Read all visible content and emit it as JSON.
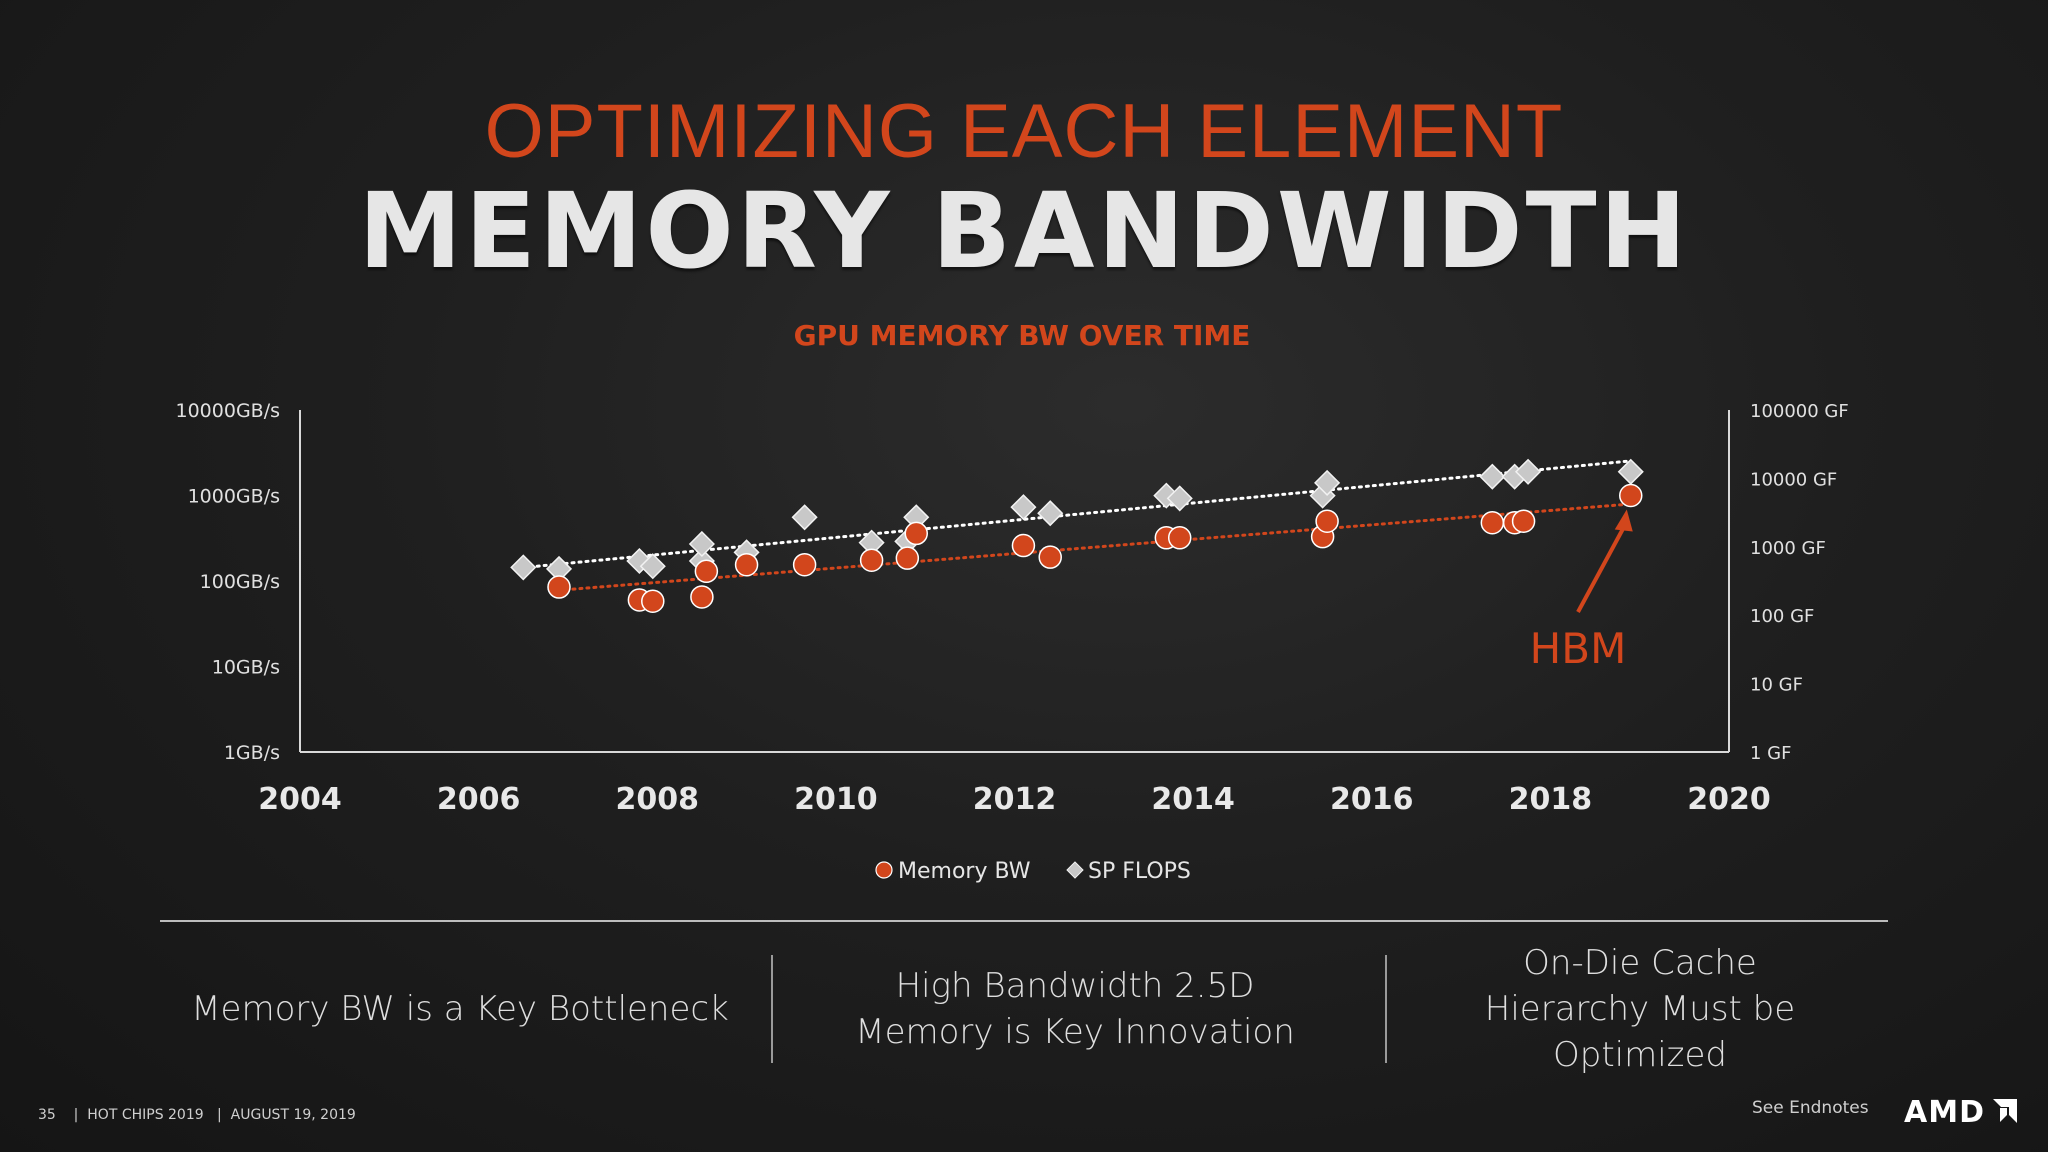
{
  "header": {
    "kicker": "OPTIMIZING EACH ELEMENT",
    "title": "MEMORY BANDWIDTH"
  },
  "chart_data": {
    "type": "scatter",
    "title": "GPU MEMORY BW OVER TIME",
    "xlabel": "",
    "ylabel_left": "",
    "ylabel_right": "",
    "x_ticks": [
      "2004",
      "2006",
      "2008",
      "2010",
      "2012",
      "2014",
      "2016",
      "2018",
      "2020"
    ],
    "xlim": [
      2004,
      2020
    ],
    "left_ticks": [
      "10000GB/s",
      "1000GB/s",
      "100GB/s",
      "10GB/s",
      "1GB/s"
    ],
    "right_ticks": [
      "100000 GF",
      "10000 GF",
      "1000 GF",
      "100 GF",
      "10 GF",
      "1 GF"
    ],
    "left_ylim_gbs": [
      1,
      10000
    ],
    "right_ylim_gf": [
      1,
      100000
    ],
    "legend_position": "bottom-center",
    "series": [
      {
        "name": "Memory BW",
        "axis": "left",
        "unit": "GB/s",
        "marker": "circle",
        "color": "#d2461c",
        "trendline": "dotted",
        "points": [
          {
            "x": 2006.9,
            "y": 85
          },
          {
            "x": 2007.8,
            "y": 60
          },
          {
            "x": 2007.95,
            "y": 58
          },
          {
            "x": 2008.5,
            "y": 65
          },
          {
            "x": 2008.55,
            "y": 130
          },
          {
            "x": 2009.0,
            "y": 155
          },
          {
            "x": 2009.65,
            "y": 155
          },
          {
            "x": 2010.4,
            "y": 175
          },
          {
            "x": 2010.8,
            "y": 185
          },
          {
            "x": 2010.9,
            "y": 360
          },
          {
            "x": 2012.1,
            "y": 260
          },
          {
            "x": 2012.4,
            "y": 190
          },
          {
            "x": 2013.7,
            "y": 320
          },
          {
            "x": 2013.85,
            "y": 320
          },
          {
            "x": 2015.45,
            "y": 330
          },
          {
            "x": 2015.5,
            "y": 500
          },
          {
            "x": 2017.35,
            "y": 480
          },
          {
            "x": 2017.6,
            "y": 480
          },
          {
            "x": 2017.7,
            "y": 500
          },
          {
            "x": 2018.9,
            "y": 1000
          }
        ]
      },
      {
        "name": "SP FLOPS",
        "axis": "right",
        "unit": "GF",
        "marker": "diamond",
        "color": "#c8c8c8",
        "trendline": "dotted",
        "points": [
          {
            "x": 2006.5,
            "y": 500
          },
          {
            "x": 2006.9,
            "y": 475
          },
          {
            "x": 2007.8,
            "y": 620
          },
          {
            "x": 2007.95,
            "y": 520
          },
          {
            "x": 2008.5,
            "y": 620
          },
          {
            "x": 2008.5,
            "y": 1100
          },
          {
            "x": 2009.0,
            "y": 830
          },
          {
            "x": 2009.65,
            "y": 2700
          },
          {
            "x": 2010.4,
            "y": 1150
          },
          {
            "x": 2010.8,
            "y": 1200
          },
          {
            "x": 2010.9,
            "y": 2700
          },
          {
            "x": 2012.1,
            "y": 3800
          },
          {
            "x": 2012.4,
            "y": 3100
          },
          {
            "x": 2013.7,
            "y": 5600
          },
          {
            "x": 2013.85,
            "y": 5100
          },
          {
            "x": 2015.45,
            "y": 5600
          },
          {
            "x": 2015.5,
            "y": 8600
          },
          {
            "x": 2017.35,
            "y": 10600
          },
          {
            "x": 2017.6,
            "y": 10600
          },
          {
            "x": 2017.75,
            "y": 12500
          },
          {
            "x": 2018.9,
            "y": 12500
          }
        ]
      }
    ],
    "annotations": [
      {
        "text": "HBM",
        "color": "#d2461c",
        "points_to": {
          "x": 2018.9,
          "y": 1000,
          "series": "Memory BW"
        }
      }
    ]
  },
  "bottom_points": [
    {
      "text": "Memory BW is a Key Bottleneck"
    },
    {
      "text": "High Bandwidth 2.5D Memory is Key Innovation"
    },
    {
      "text": "On-Die Cache Hierarchy Must be Optimized"
    }
  ],
  "footer": {
    "page": "35",
    "event": "HOT CHIPS 2019",
    "date": "AUGUST 19, 2019",
    "sep": "|",
    "endnotes": "See Endnotes",
    "logo": "AMD"
  }
}
